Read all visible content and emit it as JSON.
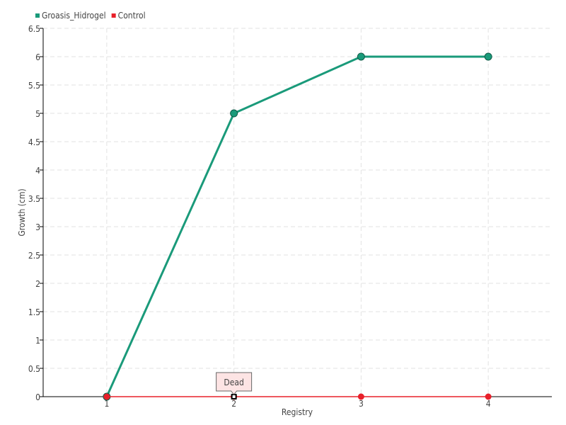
{
  "chart_data": {
    "type": "line",
    "title": "",
    "xlabel": "Registry",
    "ylabel": "Growth (cm)",
    "categories": [
      "1",
      "2",
      "3",
      "4"
    ],
    "ylim": [
      0,
      6.5
    ],
    "yticks": [
      "0",
      "0.5",
      "1",
      "1.5",
      "2",
      "2.5",
      "3",
      "3.5",
      "4",
      "4.5",
      "5",
      "5.5",
      "6",
      "6.5"
    ],
    "grid": true,
    "legend": "top-left",
    "series": [
      {
        "name": "Groasis_Hidrogel",
        "color": "#1a9a7a",
        "values": [
          0,
          5,
          6,
          6
        ]
      },
      {
        "name": "Control",
        "color": "#e8202a",
        "values": [
          0,
          0,
          0,
          0
        ]
      }
    ],
    "annotations": [
      {
        "series": "Control",
        "category": "2",
        "text": "Dead"
      }
    ]
  }
}
